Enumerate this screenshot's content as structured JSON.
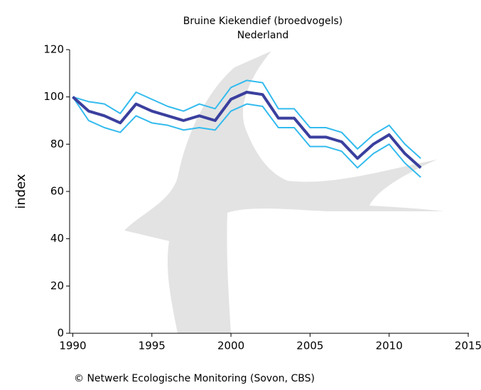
{
  "chart_data": {
    "type": "line",
    "title": "Bruine Kiekendief (broedvogels)",
    "subtitle": "Nederland",
    "y_label": "index",
    "footer": "© Netwerk Ecologische Monitoring (Sovon, CBS)",
    "x": [
      1990,
      1991,
      1992,
      1993,
      1994,
      1995,
      1996,
      1997,
      1998,
      1999,
      2000,
      2001,
      2002,
      2003,
      2004,
      2005,
      2006,
      2007,
      2008,
      2009,
      2010,
      2011,
      2012
    ],
    "series": [
      {
        "color": "#33bbee",
        "values": [
          100,
          98,
          97,
          93,
          102,
          99,
          96,
          94,
          97,
          95,
          104,
          107,
          106,
          95,
          95,
          87,
          87,
          85,
          78,
          84,
          88,
          80,
          74
        ]
      },
      {
        "color": "#33bbee",
        "values": [
          100,
          90,
          87,
          85,
          92,
          89,
          88,
          86,
          87,
          86,
          94,
          97,
          96,
          87,
          87,
          79,
          79,
          77,
          70,
          76,
          80,
          72,
          66
        ]
      },
      {
        "color": "#3a3f9e",
        "values": [
          100,
          94,
          92,
          89,
          97,
          94,
          92,
          90,
          92,
          90,
          99,
          102,
          101,
          91,
          91,
          83,
          83,
          81,
          74,
          80,
          84,
          76,
          70
        ]
      }
    ],
    "xlim": [
      1989.8,
      2015
    ],
    "xticks": [
      1990,
      1995,
      2000,
      2005,
      2010,
      2015
    ],
    "ylim": [
      0,
      120
    ],
    "yticks": [
      0,
      20,
      40,
      60,
      80,
      100,
      120
    ]
  }
}
